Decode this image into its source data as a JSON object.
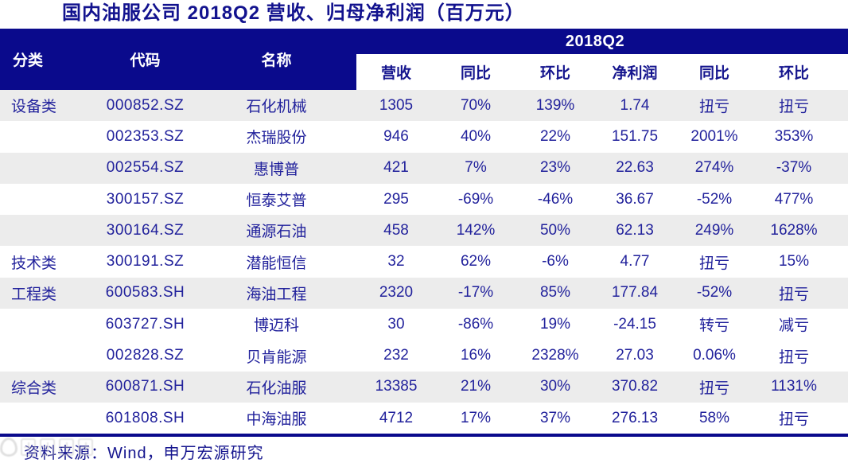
{
  "title": "国内油服公司 2018Q2 营收、归母净利润（百万元）",
  "table": {
    "period_header": "2018Q2",
    "left_headers": {
      "category": "分类",
      "code": "代码",
      "name": "名称"
    },
    "metric_headers": [
      "营收",
      "同比",
      "环比",
      "净利润",
      "同比",
      "环比"
    ],
    "rows": [
      {
        "category": "设备类",
        "code": "000852.SZ",
        "name": "石化机械",
        "revenue": "1305",
        "rev_yoy": "70%",
        "rev_qoq": "139%",
        "profit": "1.74",
        "prof_yoy": "扭亏",
        "prof_qoq": "扭亏"
      },
      {
        "category": "",
        "code": "002353.SZ",
        "name": "杰瑞股份",
        "revenue": "946",
        "rev_yoy": "40%",
        "rev_qoq": "22%",
        "profit": "151.75",
        "prof_yoy": "2001%",
        "prof_qoq": "353%"
      },
      {
        "category": "",
        "code": "002554.SZ",
        "name": "惠博普",
        "revenue": "421",
        "rev_yoy": "7%",
        "rev_qoq": "23%",
        "profit": "22.63",
        "prof_yoy": "274%",
        "prof_qoq": "-37%"
      },
      {
        "category": "",
        "code": "300157.SZ",
        "name": "恒泰艾普",
        "revenue": "295",
        "rev_yoy": "-69%",
        "rev_qoq": "-46%",
        "profit": "36.67",
        "prof_yoy": "-52%",
        "prof_qoq": "477%"
      },
      {
        "category": "",
        "code": "300164.SZ",
        "name": "通源石油",
        "revenue": "458",
        "rev_yoy": "142%",
        "rev_qoq": "50%",
        "profit": "62.13",
        "prof_yoy": "249%",
        "prof_qoq": "1628%"
      },
      {
        "category": "技术类",
        "code": "300191.SZ",
        "name": "潜能恒信",
        "revenue": "32",
        "rev_yoy": "62%",
        "rev_qoq": "-6%",
        "profit": "4.77",
        "prof_yoy": "扭亏",
        "prof_qoq": "15%"
      },
      {
        "category": "工程类",
        "code": "600583.SH",
        "name": "海油工程",
        "revenue": "2320",
        "rev_yoy": "-17%",
        "rev_qoq": "85%",
        "profit": "177.84",
        "prof_yoy": "-52%",
        "prof_qoq": "扭亏"
      },
      {
        "category": "",
        "code": "603727.SH",
        "name": "博迈科",
        "revenue": "30",
        "rev_yoy": "-86%",
        "rev_qoq": "19%",
        "profit": "-24.15",
        "prof_yoy": "转亏",
        "prof_qoq": "减亏"
      },
      {
        "category": "",
        "code": "002828.SZ",
        "name": "贝肯能源",
        "revenue": "232",
        "rev_yoy": "16%",
        "rev_qoq": "2328%",
        "profit": "27.03",
        "prof_yoy": "0.06%",
        "prof_qoq": "扭亏"
      },
      {
        "category": "综合类",
        "code": "600871.SH",
        "name": "石化油服",
        "revenue": "13385",
        "rev_yoy": "21%",
        "rev_qoq": "30%",
        "profit": "370.82",
        "prof_yoy": "扭亏",
        "prof_qoq": "1131%"
      },
      {
        "category": "",
        "code": "601808.SH",
        "name": "中海油服",
        "revenue": "4712",
        "rev_yoy": "17%",
        "rev_qoq": "37%",
        "profit": "276.13",
        "prof_yoy": "58%",
        "prof_qoq": "扭亏"
      }
    ]
  },
  "footer": {
    "source": "资料来源：Wind，申万宏源研究"
  },
  "colors": {
    "navy": "#0a0a8c",
    "row_shaded": "#ececec",
    "data_text": "#22229c"
  }
}
